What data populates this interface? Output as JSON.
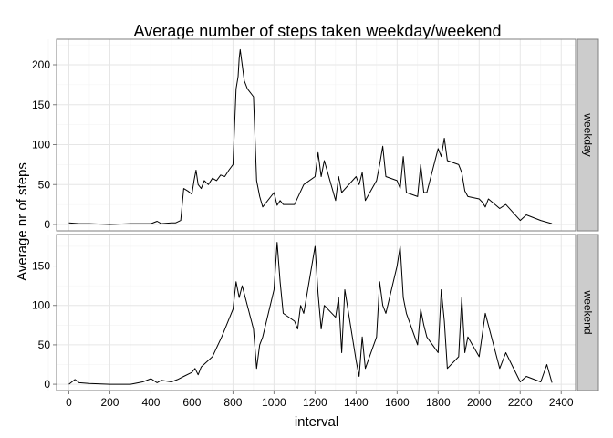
{
  "chart_data": {
    "type": "line",
    "title": "Average number of steps taken weekday/weekend",
    "xlabel": "interval",
    "ylabel": "Average nr of steps",
    "xlim": [
      -60,
      2470
    ],
    "xticks": [
      0,
      200,
      400,
      600,
      800,
      1000,
      1200,
      1400,
      1600,
      1800,
      2000,
      2200,
      2400
    ],
    "grid": true,
    "facet_position": "right",
    "panels": [
      {
        "name": "weekday",
        "ylim": [
          -8,
          232
        ],
        "yticks": [
          0,
          50,
          100,
          150,
          200
        ],
        "x": [
          0,
          50,
          100,
          200,
          300,
          400,
          430,
          450,
          500,
          520,
          545,
          560,
          580,
          600,
          610,
          620,
          630,
          645,
          660,
          680,
          700,
          720,
          740,
          760,
          780,
          800,
          815,
          825,
          830,
          835,
          845,
          855,
          870,
          900,
          915,
          930,
          945,
          1000,
          1015,
          1030,
          1045,
          1100,
          1145,
          1200,
          1215,
          1230,
          1245,
          1300,
          1315,
          1330,
          1400,
          1415,
          1430,
          1445,
          1500,
          1515,
          1530,
          1545,
          1600,
          1615,
          1630,
          1645,
          1700,
          1715,
          1730,
          1745,
          1800,
          1815,
          1830,
          1845,
          1900,
          1915,
          1930,
          1945,
          2000,
          2015,
          2030,
          2045,
          2100,
          2130,
          2200,
          2230,
          2300,
          2355
        ],
        "y": [
          2,
          1,
          1,
          0,
          1,
          1,
          4,
          1,
          2,
          2,
          5,
          45,
          42,
          38,
          55,
          68,
          50,
          45,
          55,
          50,
          58,
          55,
          62,
          60,
          68,
          75,
          170,
          185,
          208,
          219,
          200,
          180,
          170,
          160,
          55,
          35,
          22,
          40,
          24,
          30,
          25,
          25,
          50,
          60,
          90,
          60,
          80,
          30,
          60,
          40,
          60,
          50,
          65,
          30,
          55,
          75,
          98,
          60,
          55,
          45,
          85,
          40,
          35,
          75,
          40,
          40,
          95,
          85,
          108,
          80,
          75,
          65,
          42,
          35,
          32,
          28,
          22,
          32,
          20,
          25,
          5,
          12,
          5,
          1
        ]
      },
      {
        "name": "weekend",
        "ylim": [
          -8,
          190
        ],
        "yticks": [
          0,
          50,
          100,
          150
        ],
        "x": [
          0,
          30,
          50,
          100,
          200,
          300,
          360,
          400,
          430,
          450,
          500,
          530,
          560,
          600,
          615,
          630,
          645,
          700,
          745,
          800,
          815,
          830,
          845,
          900,
          915,
          930,
          945,
          1000,
          1015,
          1030,
          1045,
          1100,
          1115,
          1130,
          1145,
          1200,
          1215,
          1230,
          1245,
          1300,
          1315,
          1330,
          1345,
          1400,
          1415,
          1430,
          1445,
          1500,
          1515,
          1530,
          1545,
          1600,
          1615,
          1630,
          1645,
          1700,
          1715,
          1730,
          1745,
          1800,
          1815,
          1830,
          1845,
          1900,
          1915,
          1930,
          1945,
          2000,
          2030,
          2100,
          2130,
          2200,
          2230,
          2300,
          2330,
          2355
        ],
        "y": [
          0,
          6,
          2,
          1,
          0,
          0,
          3,
          7,
          2,
          5,
          3,
          6,
          10,
          15,
          20,
          12,
          22,
          35,
          60,
          95,
          130,
          110,
          125,
          70,
          20,
          50,
          60,
          120,
          180,
          130,
          90,
          80,
          70,
          100,
          90,
          175,
          115,
          70,
          100,
          85,
          110,
          40,
          120,
          30,
          10,
          60,
          20,
          60,
          130,
          100,
          90,
          150,
          175,
          110,
          90,
          50,
          95,
          75,
          60,
          40,
          120,
          80,
          20,
          35,
          110,
          40,
          60,
          35,
          90,
          20,
          40,
          3,
          10,
          3,
          25,
          2
        ]
      }
    ]
  }
}
